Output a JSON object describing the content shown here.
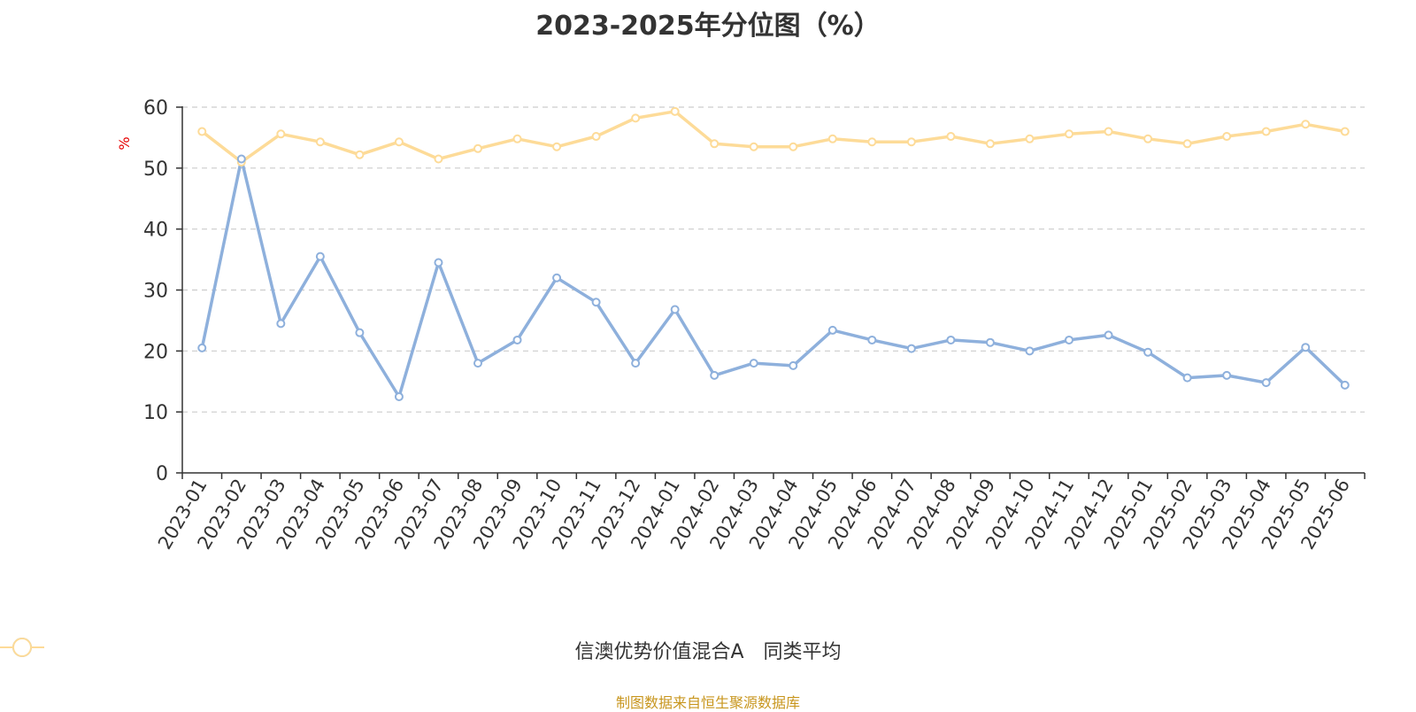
{
  "chart_data": {
    "type": "line",
    "title": "2023-2025年分位图（%）",
    "ylabel": "%",
    "xlabel": "",
    "ylim": [
      0,
      60
    ],
    "yticks": [
      0,
      10,
      20,
      30,
      40,
      50,
      60
    ],
    "grid": true,
    "legend_position": "bottom-center",
    "categories": [
      "2023-01",
      "2023-02",
      "2023-03",
      "2023-04",
      "2023-05",
      "2023-06",
      "2023-07",
      "2023-08",
      "2023-09",
      "2023-10",
      "2023-11",
      "2023-12",
      "2024-01",
      "2024-02",
      "2024-03",
      "2024-04",
      "2024-05",
      "2024-06",
      "2024-07",
      "2024-08",
      "2024-09",
      "2024-10",
      "2024-11",
      "2024-12",
      "2025-01",
      "2025-02",
      "2025-03",
      "2025-04",
      "2025-05",
      "2025-06"
    ],
    "series": [
      {
        "name": "信澳优势价值混合A",
        "color": "#8eb0dc",
        "values": [
          20.5,
          51.5,
          24.5,
          35.5,
          23.0,
          12.5,
          34.5,
          18.0,
          21.8,
          32.0,
          28.0,
          18.0,
          26.8,
          16.0,
          18.0,
          17.6,
          23.4,
          21.8,
          20.4,
          21.8,
          21.4,
          20.0,
          21.8,
          22.6,
          19.8,
          15.6,
          16.0,
          14.8,
          20.6,
          14.4
        ]
      },
      {
        "name": "同类平均",
        "color": "#fddb98",
        "values": [
          56.0,
          51.0,
          55.6,
          54.3,
          52.2,
          54.3,
          51.5,
          53.2,
          54.8,
          53.5,
          55.2,
          58.2,
          59.3,
          54.0,
          53.5,
          53.5,
          54.8,
          54.3,
          54.3,
          55.2,
          54.0,
          54.8,
          55.6,
          56.0,
          54.8,
          54.0,
          55.2,
          56.0,
          57.2,
          56.0
        ]
      }
    ]
  },
  "footer": {
    "source": "制图数据来自恒生聚源数据库"
  }
}
